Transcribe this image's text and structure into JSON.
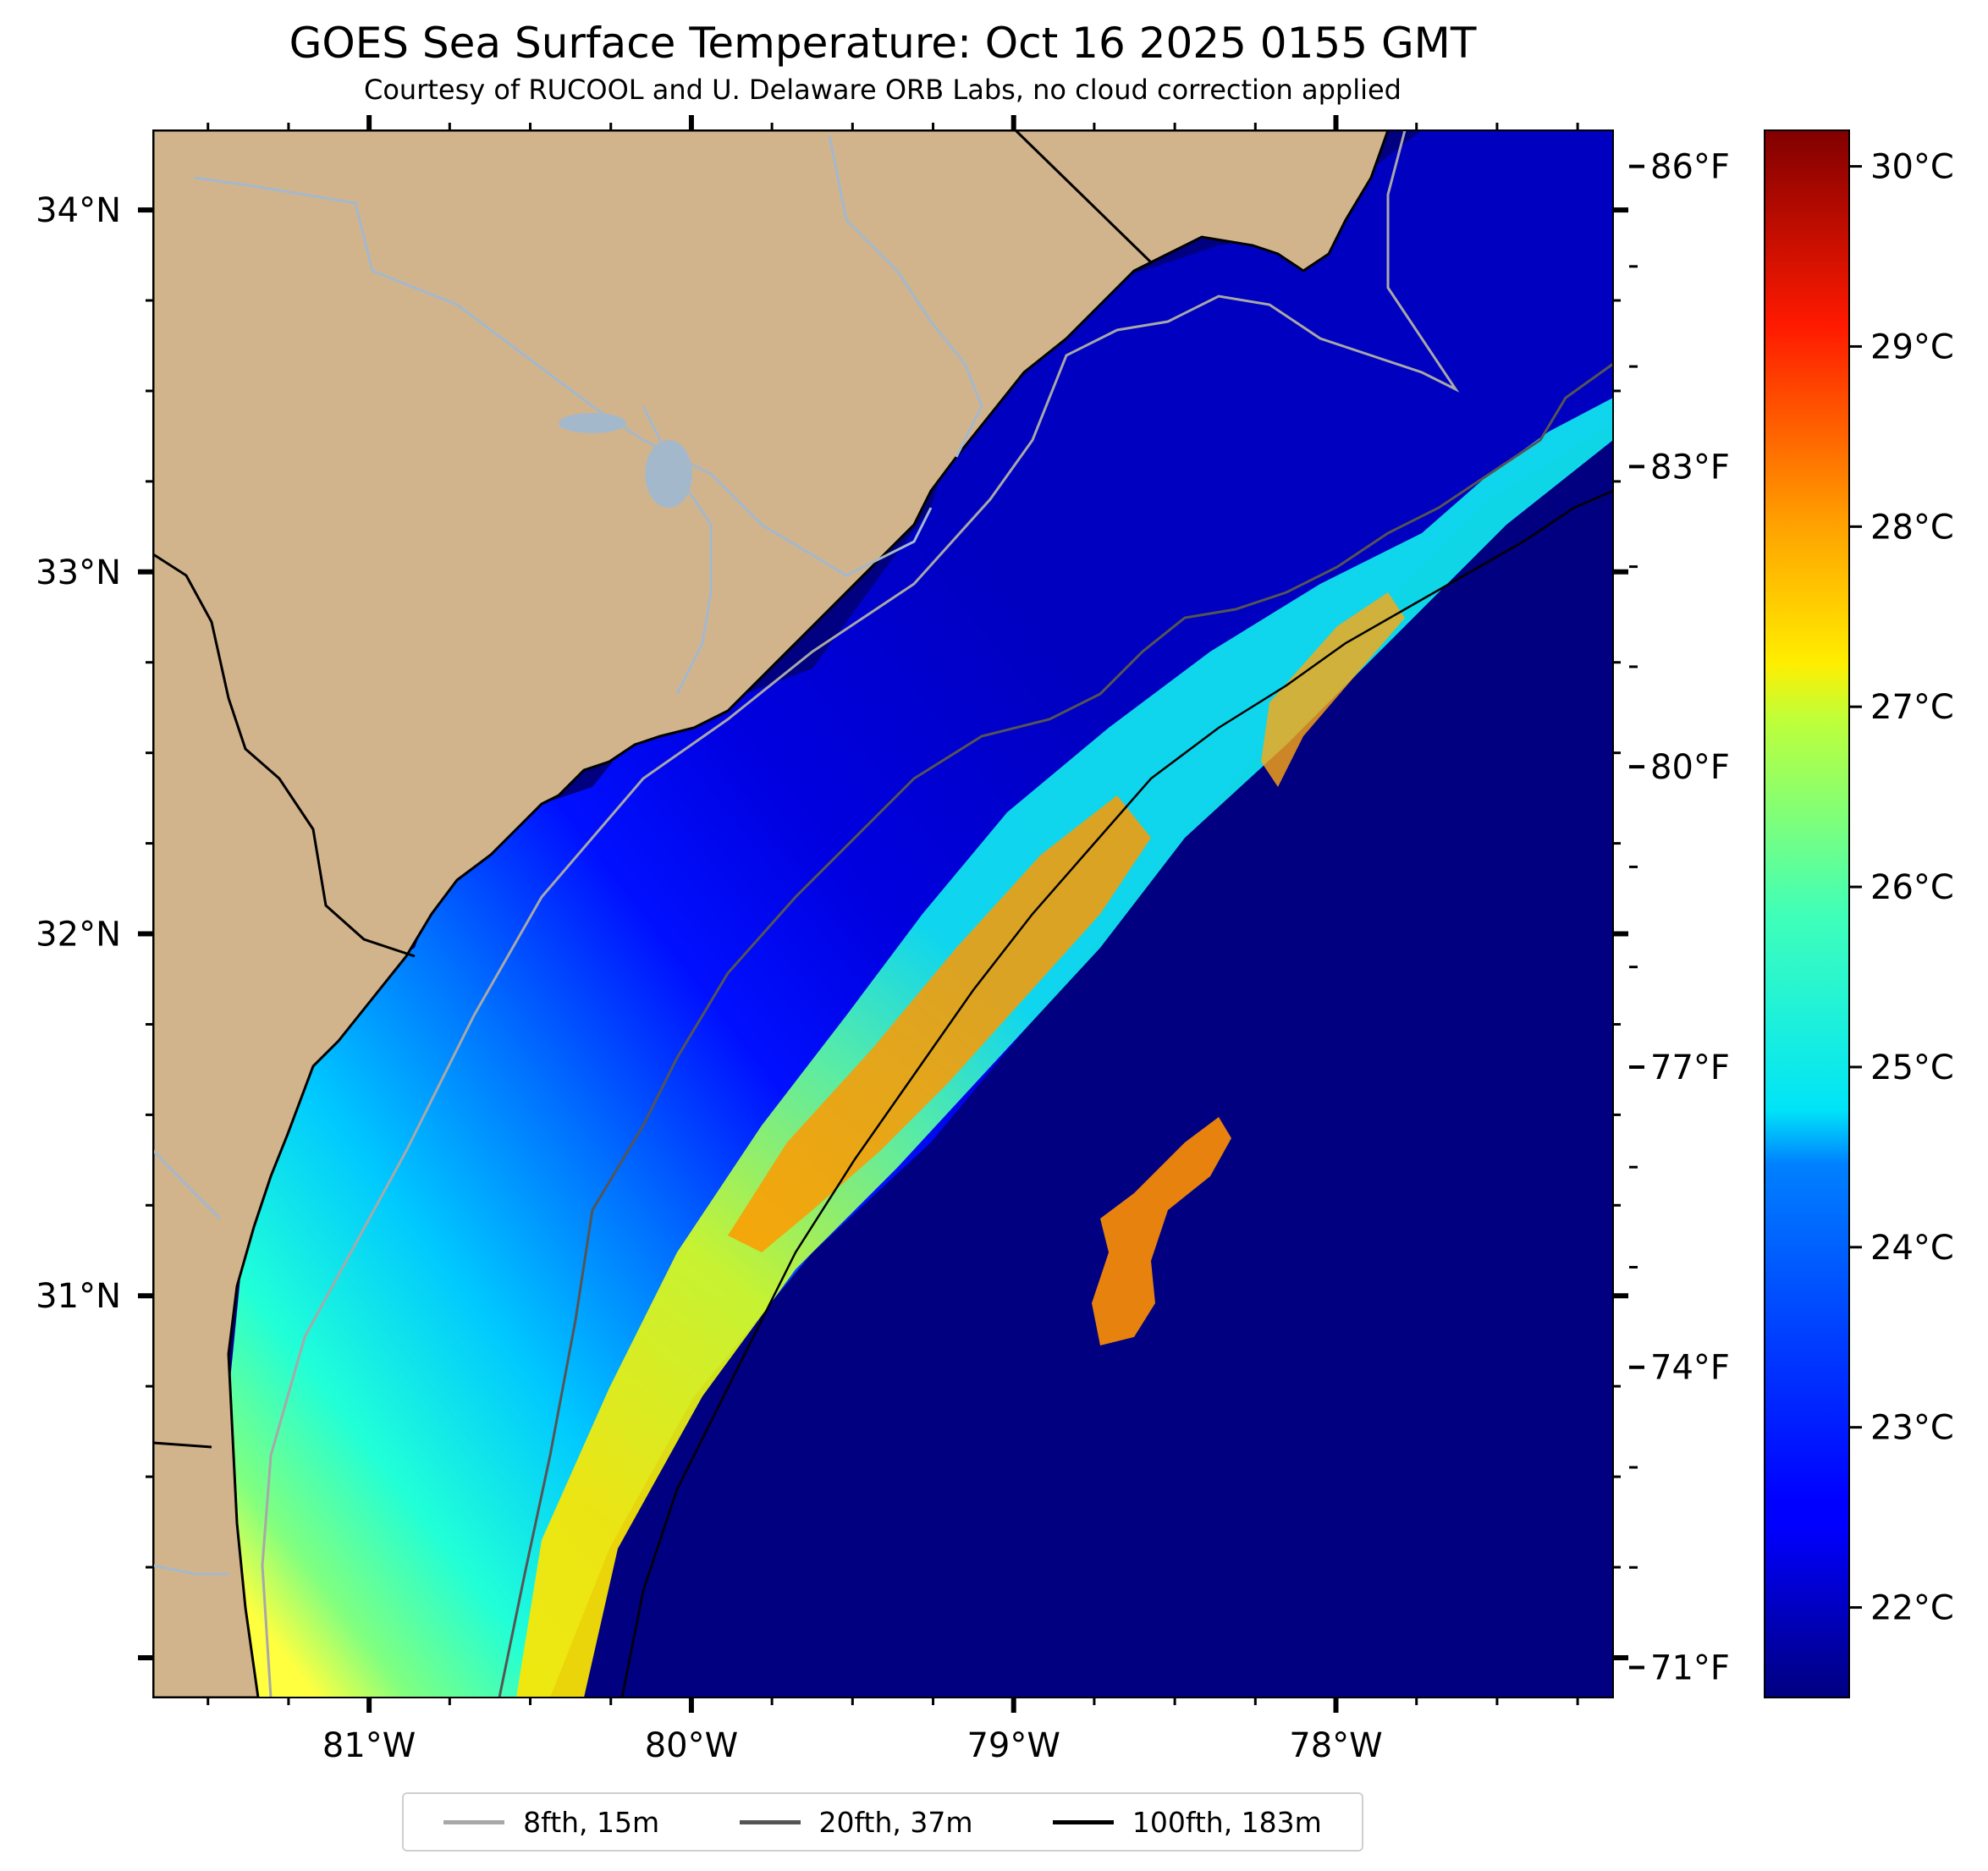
{
  "title": "GOES Sea Surface Temperature: Oct 16 2025 0155 GMT",
  "subtitle": "Courtesy of RUCOOL and U. Delaware ORB Labs, no cloud correction applied",
  "colors": {
    "land": "#d2b48c",
    "rivers": "#a4b8cc",
    "coast": "#000000",
    "cold_water": "#000080",
    "iso_8": "#a8a8a8",
    "iso_20": "#555555",
    "iso_100": "#000000"
  },
  "chart_data": {
    "type": "heatmap",
    "projection": "lat-lon",
    "lon_range": [
      -81.67,
      -77.14
    ],
    "lat_range": [
      29.89,
      34.22
    ],
    "lon_ticks": [
      {
        "value": -81,
        "label": "81°W"
      },
      {
        "value": -80,
        "label": "80°W"
      },
      {
        "value": -79,
        "label": "79°W"
      },
      {
        "value": -78,
        "label": "78°W"
      }
    ],
    "lat_ticks": [
      {
        "value": 34,
        "label": "34°N"
      },
      {
        "value": 33,
        "label": "33°N"
      },
      {
        "value": 32,
        "label": "32°N"
      },
      {
        "value": 31,
        "label": "31°N"
      }
    ],
    "colorbar": {
      "colormap": "jet",
      "range_c": [
        21.5,
        30.2
      ],
      "celsius_ticks": [
        {
          "value": 22,
          "label": "22°C"
        },
        {
          "value": 23,
          "label": "23°C"
        },
        {
          "value": 24,
          "label": "24°C"
        },
        {
          "value": 25,
          "label": "25°C"
        },
        {
          "value": 26,
          "label": "26°C"
        },
        {
          "value": 27,
          "label": "27°C"
        },
        {
          "value": 28,
          "label": "28°C"
        },
        {
          "value": 29,
          "label": "29°C"
        },
        {
          "value": 30,
          "label": "30°C"
        }
      ],
      "fahrenheit_ticks": [
        {
          "value": 71,
          "label": "71°F"
        },
        {
          "value": 74,
          "label": "74°F"
        },
        {
          "value": 77,
          "label": "77°F"
        },
        {
          "value": 80,
          "label": "80°F"
        },
        {
          "value": 83,
          "label": "83°F"
        },
        {
          "value": 86,
          "label": "86°F"
        }
      ]
    },
    "legend": {
      "placement": "bottom-center",
      "entries": [
        {
          "label": "8fth, 15m",
          "color": "#a8a8a8"
        },
        {
          "label": "20fth, 37m",
          "color": "#555555"
        },
        {
          "label": "100fth, 183m",
          "color": "#000000"
        }
      ]
    }
  }
}
